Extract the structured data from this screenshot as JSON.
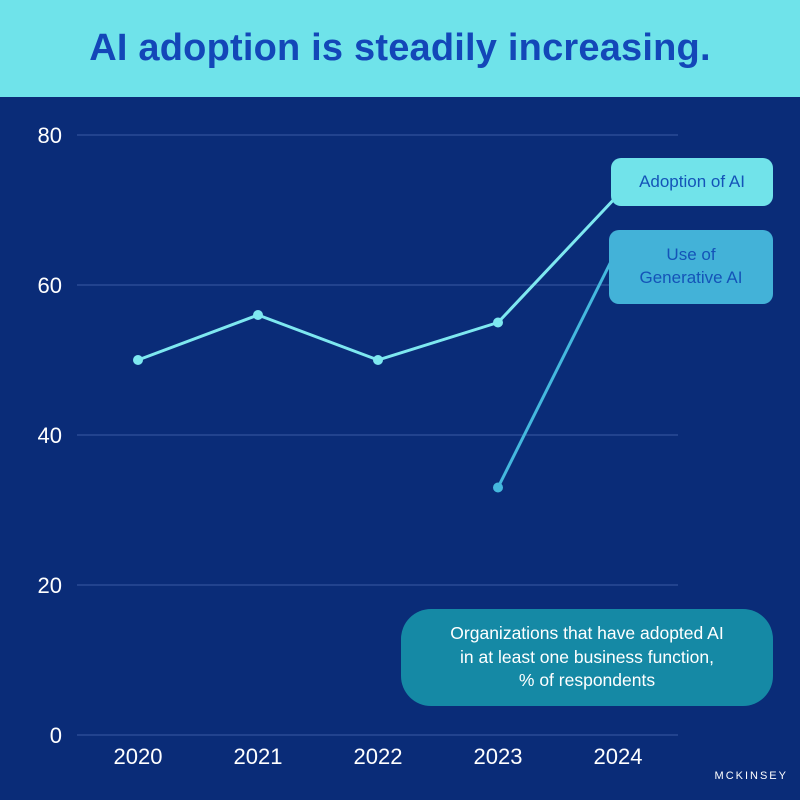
{
  "title": "AI adoption is steadily increasing.",
  "source": "MCKINSEY",
  "note": "Organizations that have adopted AI\nin at least one business function,\n% of respondents",
  "series_labels": {
    "adoption": "Adoption of AI",
    "genai": "Use of\nGenerative AI"
  },
  "colors": {
    "background": "#0a2c78",
    "banner": "#6fe3ea",
    "title": "#1347b8",
    "adoption_line": "#7ee8f0",
    "genai_line": "#45b8de",
    "gridline": "#3a5aa3",
    "note_bg": "#1589a5"
  },
  "chart_data": {
    "type": "line",
    "title": "AI adoption is steadily increasing.",
    "xlabel": "",
    "ylabel": "",
    "categories": [
      "2020",
      "2021",
      "2022",
      "2023",
      "2024"
    ],
    "yticks": [
      0,
      20,
      40,
      60,
      80
    ],
    "ylim": [
      0,
      80
    ],
    "grid": true,
    "series": [
      {
        "name": "Adoption of AI",
        "x": [
          "2020",
          "2021",
          "2022",
          "2023",
          "2024"
        ],
        "values": [
          50,
          56,
          50,
          55,
          72
        ]
      },
      {
        "name": "Use of Generative AI",
        "x": [
          "2023",
          "2024"
        ],
        "values": [
          33,
          65
        ]
      }
    ]
  }
}
